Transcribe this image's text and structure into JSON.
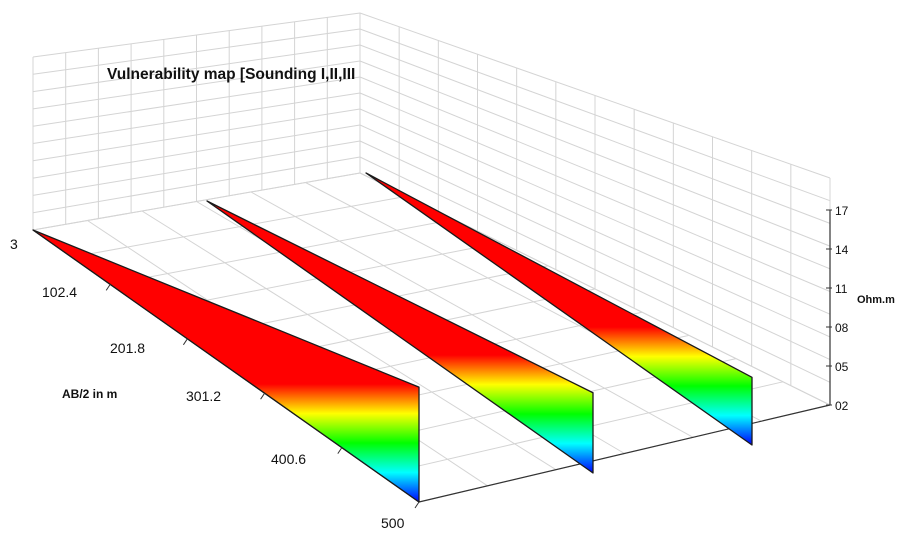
{
  "chart_data": {
    "type": "area",
    "title": "Vulnerability map [Sounding I,II,III",
    "xlabel": "AB/2 in m",
    "zlabel": "Ohm.m",
    "x_ticks": [
      "3",
      "102.4",
      "201.8",
      "301.2",
      "400.6",
      "500"
    ],
    "z_ticks": [
      "02",
      "05",
      "08",
      "11",
      "14",
      "17"
    ],
    "xlim": [
      3,
      500
    ],
    "zlim": [
      2,
      17
    ],
    "grid": true,
    "colormap": [
      "#0000ff",
      "#00ffff",
      "#00ff00",
      "#ffff00",
      "#ff0000"
    ],
    "series": [
      {
        "x": [
          3,
          500
        ],
        "values": [
          2,
          16.6
        ]
      },
      {
        "x": [
          3,
          500
        ],
        "values": [
          2,
          12.2
        ]
      },
      {
        "x": [
          3,
          500
        ],
        "values": [
          2,
          10.6
        ]
      }
    ]
  }
}
